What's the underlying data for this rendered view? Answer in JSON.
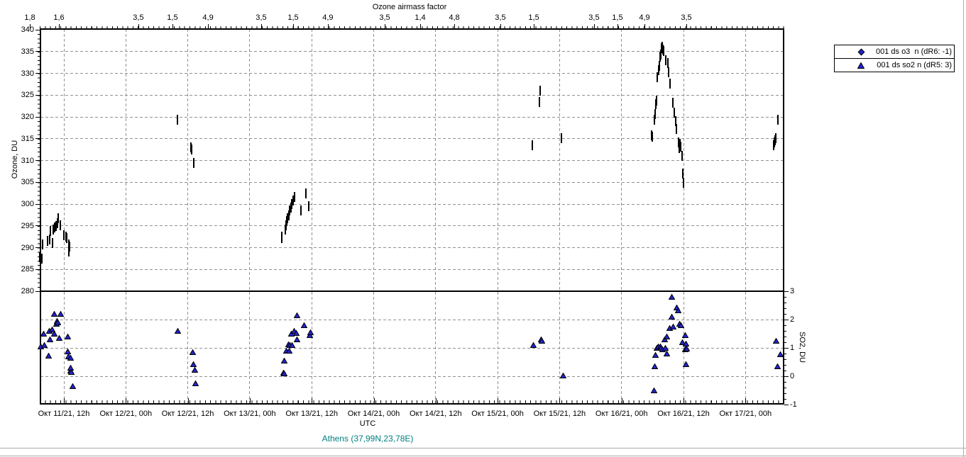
{
  "chart_data": {
    "type": "scatter",
    "station": "Athens (37,99N,23,78E)",
    "x_axis": {
      "title": "UTC",
      "x_encoding": "days since Окт 11/21, 00:00 UTC",
      "ticks": [
        {
          "pos": 0.5,
          "label": "Окт 11/21, 12h"
        },
        {
          "pos": 1.0,
          "label": "Окт 12/21, 00h"
        },
        {
          "pos": 1.5,
          "label": "Окт 12/21, 12h"
        },
        {
          "pos": 2.0,
          "label": "Окт 13/21, 00h"
        },
        {
          "pos": 2.5,
          "label": "Окт 13/21, 12h"
        },
        {
          "pos": 3.0,
          "label": "Окт 14/21, 00h"
        },
        {
          "pos": 3.5,
          "label": "Окт 14/21, 12h"
        },
        {
          "pos": 4.0,
          "label": "Окт 15/21, 00h"
        },
        {
          "pos": 4.5,
          "label": "Окт 15/21, 12h"
        },
        {
          "pos": 5.0,
          "label": "Окт 16/21, 00h"
        },
        {
          "pos": 5.5,
          "label": "Окт 16/21, 12h"
        },
        {
          "pos": 6.0,
          "label": "Окт 17/21, 00h"
        }
      ]
    },
    "top_axis": {
      "title": "Ozone airmass factor",
      "ticks": [
        {
          "pos": 0.225,
          "label": "1,8"
        },
        {
          "pos": 0.46,
          "label": "1,6"
        },
        {
          "pos": 1.101,
          "label": "3,5"
        },
        {
          "pos": 1.376,
          "label": "1,5"
        },
        {
          "pos": 1.663,
          "label": "4,9"
        },
        {
          "pos": 2.092,
          "label": "3,5"
        },
        {
          "pos": 2.35,
          "label": "1,5"
        },
        {
          "pos": 2.63,
          "label": "4,9"
        },
        {
          "pos": 3.089,
          "label": "3,5"
        },
        {
          "pos": 3.375,
          "label": "1,4"
        },
        {
          "pos": 3.65,
          "label": "4,8"
        },
        {
          "pos": 4.022,
          "label": "3,5"
        },
        {
          "pos": 4.292,
          "label": "1,5"
        },
        {
          "pos": 4.778,
          "label": "3,5"
        },
        {
          "pos": 4.967,
          "label": "1,5"
        },
        {
          "pos": 5.185,
          "label": "4,9"
        },
        {
          "pos": 5.523,
          "label": "3,5"
        }
      ]
    },
    "y_left_axis": {
      "title": "Ozone, DU",
      "min": 280,
      "max": 340,
      "step": 5
    },
    "y_right_axis": {
      "title": "SO2, DU",
      "min": -1,
      "max": 3,
      "step": 1
    },
    "series": [
      {
        "name": "001 ds o3  n (dR6: -1)",
        "marker": "diamond",
        "y_axis": "left",
        "points": [
          [
            0.317,
            287.3
          ],
          [
            0.334,
            286.9
          ],
          [
            0.345,
            290.2
          ],
          [
            0.38,
            291.0
          ],
          [
            0.397,
            291.3
          ],
          [
            0.403,
            293.2
          ],
          [
            0.42,
            290.5
          ],
          [
            0.426,
            293.6
          ],
          [
            0.437,
            294.0
          ],
          [
            0.454,
            294.4
          ],
          [
            0.46,
            295.0
          ],
          [
            0.471,
            296.1
          ],
          [
            0.483,
            294.6
          ],
          [
            0.517,
            292.3
          ],
          [
            0.529,
            292.0
          ],
          [
            0.54,
            291.6
          ],
          [
            0.552,
            290.2
          ],
          [
            0.557,
            288.6
          ],
          [
            0.563,
            289.7
          ],
          [
            1.428,
            318.7
          ],
          [
            1.542,
            312.4
          ],
          [
            1.548,
            311.9
          ],
          [
            1.56,
            308.9
          ],
          [
            2.27,
            291.6
          ],
          [
            2.273,
            292.0
          ],
          [
            2.299,
            293.6
          ],
          [
            2.305,
            294.6
          ],
          [
            2.31,
            295.5
          ],
          [
            2.316,
            296.2
          ],
          [
            2.328,
            296.8
          ],
          [
            2.333,
            297.9
          ],
          [
            2.345,
            298.6
          ],
          [
            2.35,
            299.5
          ],
          [
            2.362,
            300.3
          ],
          [
            2.373,
            301.1
          ],
          [
            2.43,
            298.0
          ],
          [
            2.47,
            301.9
          ],
          [
            2.493,
            299.0
          ],
          [
            4.292,
            313.0
          ],
          [
            4.349,
            322.9
          ],
          [
            4.36,
            325.4
          ],
          [
            4.532,
            314.6
          ],
          [
            5.259,
            315.2
          ],
          [
            5.264,
            314.9
          ],
          [
            5.282,
            318.7
          ],
          [
            5.287,
            320.1
          ],
          [
            5.293,
            322.4
          ],
          [
            5.298,
            323.1
          ],
          [
            5.304,
            328.6
          ],
          [
            5.316,
            330.2
          ],
          [
            5.319,
            331.2
          ],
          [
            5.327,
            333.3
          ],
          [
            5.332,
            333.8
          ],
          [
            5.338,
            335.2
          ],
          [
            5.344,
            335.6
          ],
          [
            5.35,
            334.8
          ],
          [
            5.356,
            334.5
          ],
          [
            5.373,
            332.5
          ],
          [
            5.39,
            331.8
          ],
          [
            5.395,
            329.6
          ],
          [
            5.407,
            327.1
          ],
          [
            5.43,
            322.7
          ],
          [
            5.441,
            320.4
          ],
          [
            5.453,
            318.5
          ],
          [
            5.458,
            316.7
          ],
          [
            5.476,
            313.5
          ],
          [
            5.481,
            312.3
          ],
          [
            5.487,
            313.3
          ],
          [
            5.493,
            312.6
          ],
          [
            5.504,
            310.5
          ],
          [
            5.51,
            306.4
          ],
          [
            5.512,
            304.3
          ],
          [
            6.244,
            313.0
          ],
          [
            6.249,
            313.5
          ],
          [
            6.255,
            314.0
          ],
          [
            6.261,
            314.6
          ],
          [
            6.278,
            318.7
          ]
        ]
      },
      {
        "name": "001 ds so2 n (dR5: 3)",
        "marker": "triangle",
        "y_axis": "right",
        "points": [
          [
            0.311,
            1.03
          ],
          [
            0.334,
            1.5
          ],
          [
            0.34,
            1.1
          ],
          [
            0.374,
            0.71
          ],
          [
            0.385,
            1.58
          ],
          [
            0.391,
            1.3
          ],
          [
            0.408,
            1.63
          ],
          [
            0.42,
            2.2
          ],
          [
            0.42,
            1.5
          ],
          [
            0.437,
            1.85
          ],
          [
            0.448,
            1.95
          ],
          [
            0.454,
            1.88
          ],
          [
            0.46,
            1.35
          ],
          [
            0.477,
            2.2
          ],
          [
            0.529,
            1.38
          ],
          [
            0.529,
            0.86
          ],
          [
            0.54,
            0.68
          ],
          [
            0.552,
            0.63
          ],
          [
            0.552,
            0.18
          ],
          [
            0.557,
            0.28
          ],
          [
            0.563,
            0.13
          ],
          [
            0.569,
            -0.37
          ],
          [
            1.422,
            1.6
          ],
          [
            1.542,
            0.83
          ],
          [
            1.548,
            0.41
          ],
          [
            1.554,
            0.21
          ],
          [
            1.56,
            -0.27
          ],
          [
            2.27,
            0.11
          ],
          [
            2.281,
            0.08
          ],
          [
            2.281,
            0.55
          ],
          [
            2.293,
            0.9
          ],
          [
            2.31,
            1.11
          ],
          [
            2.316,
            0.88
          ],
          [
            2.327,
            1.08
          ],
          [
            2.338,
            1.48
          ],
          [
            2.344,
            1.1
          ],
          [
            2.361,
            1.58
          ],
          [
            2.373,
            1.51
          ],
          [
            2.379,
            2.15
          ],
          [
            2.379,
            1.28
          ],
          [
            2.436,
            1.78
          ],
          [
            2.482,
            1.45
          ],
          [
            2.493,
            1.53
          ],
          [
            4.286,
            1.1
          ],
          [
            4.349,
            1.28
          ],
          [
            4.36,
            1.23
          ],
          [
            4.532,
            0.01
          ],
          [
            5.264,
            -0.51
          ],
          [
            5.27,
            0.33
          ],
          [
            5.276,
            0.74
          ],
          [
            5.287,
            0.98
          ],
          [
            5.298,
            1.03
          ],
          [
            5.316,
            1.05
          ],
          [
            5.321,
            0.98
          ],
          [
            5.333,
            0.93
          ],
          [
            5.35,
            1.3
          ],
          [
            5.356,
            0.98
          ],
          [
            5.367,
            1.38
          ],
          [
            5.367,
            0.78
          ],
          [
            5.39,
            1.7
          ],
          [
            5.408,
            2.78
          ],
          [
            5.408,
            2.1
          ],
          [
            5.419,
            1.75
          ],
          [
            5.448,
            2.42
          ],
          [
            5.459,
            2.32
          ],
          [
            5.471,
            1.85
          ],
          [
            5.482,
            1.8
          ],
          [
            5.493,
            1.2
          ],
          [
            5.516,
            1.45
          ],
          [
            5.516,
            0.93
          ],
          [
            5.522,
            1.13
          ],
          [
            5.522,
            0.41
          ],
          [
            5.528,
            0.97
          ],
          [
            6.249,
            1.23
          ],
          [
            6.261,
            0.33
          ],
          [
            6.284,
            0.76
          ]
        ]
      }
    ]
  },
  "colors": {
    "marker": "#2323cd",
    "grid": "#919191",
    "axis": "#000000",
    "station_label": "#008080",
    "window_border": "#ababab"
  }
}
